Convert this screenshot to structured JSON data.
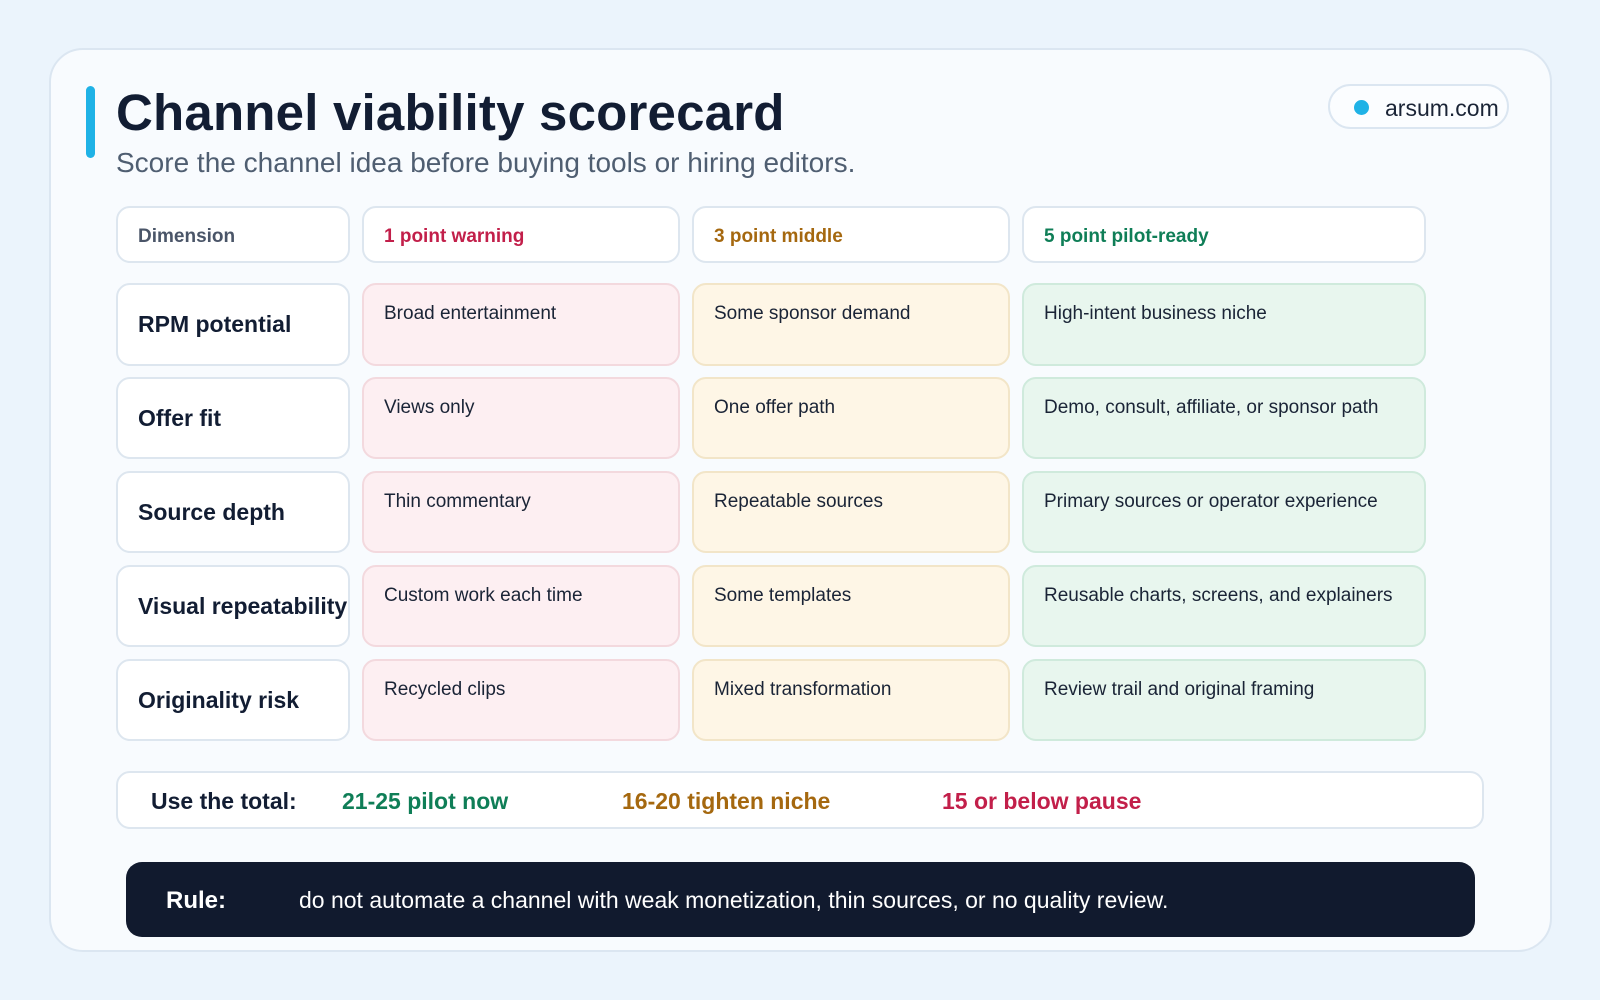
{
  "header": {
    "title": "Channel viability scorecard",
    "subtitle": "Score the channel idea before buying tools or hiring editors.",
    "brand": "arsum.com"
  },
  "colors": {
    "accent": "#1fb2e6",
    "warning": "#c21f4a",
    "middle": "#a5680f",
    "pilot_ready": "#0f7e57",
    "rule_bg": "#111a2e"
  },
  "columns": [
    {
      "label": "Dimension"
    },
    {
      "label": "1 point warning"
    },
    {
      "label": "3 point middle"
    },
    {
      "label": "5 point pilot-ready"
    }
  ],
  "rows": [
    {
      "dimension": "RPM potential",
      "warning": "Broad entertainment",
      "middle": "Some sponsor demand",
      "pilot_ready": "High-intent business niche"
    },
    {
      "dimension": "Offer fit",
      "warning": "Views only",
      "middle": "One offer path",
      "pilot_ready": "Demo, consult, affiliate, or sponsor path"
    },
    {
      "dimension": "Source depth",
      "warning": "Thin commentary",
      "middle": "Repeatable sources",
      "pilot_ready": "Primary sources or operator experience"
    },
    {
      "dimension": "Visual repeatability",
      "warning": "Custom work each time",
      "middle": "Some templates",
      "pilot_ready": "Reusable charts, screens, and explainers"
    },
    {
      "dimension": "Originality risk",
      "warning": "Recycled clips",
      "middle": "Mixed transformation",
      "pilot_ready": "Review trail and original framing"
    }
  ],
  "totals": {
    "label": "Use the total:",
    "pilot": "21-25 pilot now",
    "tighten": "16-20 tighten niche",
    "pause": "15 or below pause"
  },
  "rule": {
    "label": "Rule:",
    "text": "do not automate a channel with weak monetization, thin sources, or no quality review."
  }
}
